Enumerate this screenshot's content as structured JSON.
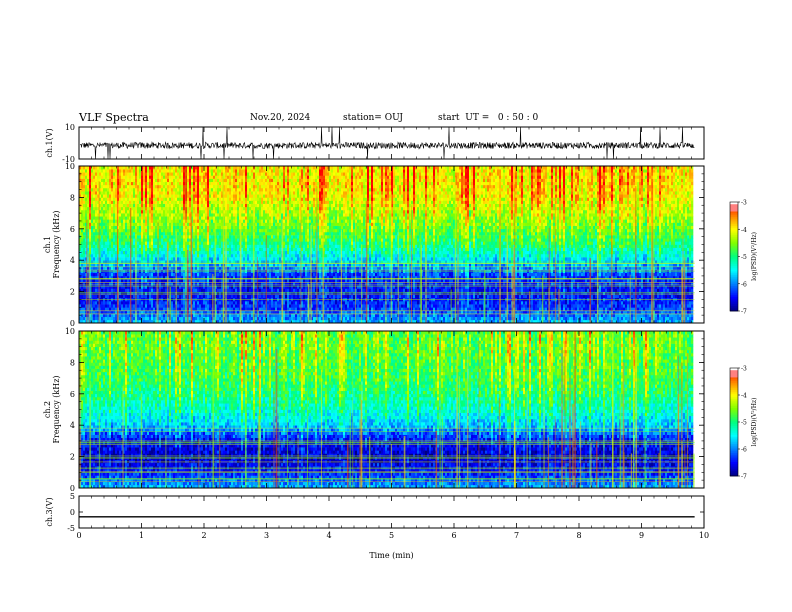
{
  "header": {
    "title": "VLF Spectra",
    "date": "Nov.20, 2024",
    "station": "station= OUJ",
    "start": "start  UT =   0 : 50 : 0"
  },
  "colorbar": {
    "ticks": [
      "-3",
      "-4",
      "-5",
      "-6",
      "-7"
    ],
    "label": "log(PSD)(V²/Hz)",
    "colors": [
      "#000080",
      "#0000ff",
      "#0080ff",
      "#00ffff",
      "#00ff80",
      "#80ff00",
      "#ffff00",
      "#ff8000",
      "#ff0000",
      "#ffffff"
    ]
  },
  "chart_data": [
    {
      "type": "line",
      "panel": "ch1-waveform",
      "ylabel": "ch.1(V)",
      "ylim": [
        -10,
        10
      ],
      "yticks": [
        "10",
        "-10"
      ],
      "xlim": [
        0,
        10
      ],
      "description_values": {
        "baseline": -1.5,
        "noise_amplitude": 2,
        "spikes_to": [
          -10,
          10
        ]
      }
    },
    {
      "type": "heatmap",
      "panel": "ch1-spectrogram",
      "ylabel": [
        "ch.1",
        "Frequency  (kHz)"
      ],
      "ylim": [
        0,
        10
      ],
      "yticks": [
        "0",
        "2",
        "4",
        "6",
        "8",
        "10"
      ],
      "xlim": [
        0,
        9.85
      ],
      "zlim": [
        -7,
        -3
      ],
      "freq_profile_khz": [
        0,
        1,
        2,
        3,
        4,
        5,
        6,
        7,
        8,
        9,
        10
      ],
      "mean_log_psd": [
        -5.8,
        -6.3,
        -6.5,
        -6.3,
        -5.6,
        -5.0,
        -4.6,
        -4.3,
        -4.0,
        -3.9,
        -3.9
      ]
    },
    {
      "type": "heatmap",
      "panel": "ch2-spectrogram",
      "ylabel": [
        "ch.2",
        "Frequency  (kHz)"
      ],
      "ylim": [
        0,
        10
      ],
      "yticks": [
        "0",
        "2",
        "4",
        "6",
        "8",
        "10"
      ],
      "xlim": [
        0,
        9.85
      ],
      "zlim": [
        -7,
        -3
      ],
      "freq_profile_khz": [
        0,
        1,
        2,
        3,
        4,
        5,
        6,
        7,
        8,
        9,
        10
      ],
      "mean_log_psd": [
        -5.8,
        -6.4,
        -6.7,
        -6.5,
        -5.7,
        -5.3,
        -5.0,
        -4.8,
        -4.7,
        -4.6,
        -4.6
      ]
    },
    {
      "type": "line",
      "panel": "ch3-waveform",
      "ylabel": "ch.3(V)",
      "ylim": [
        -5,
        5
      ],
      "yticks": [
        "5",
        "0",
        "-5"
      ],
      "xlim": [
        0,
        9.85
      ],
      "values_constant": -1.5
    }
  ],
  "xaxis": {
    "label": "Time  (min)",
    "ticks": [
      "0",
      "1",
      "2",
      "3",
      "4",
      "5",
      "6",
      "7",
      "8",
      "9",
      "10"
    ]
  }
}
